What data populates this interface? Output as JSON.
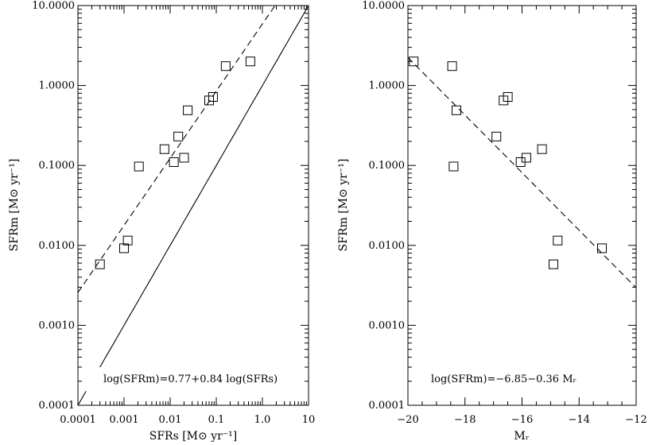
{
  "chart_data": [
    {
      "type": "scatter",
      "xscale": "log",
      "yscale": "log",
      "xlim": [
        0.0001,
        10
      ],
      "ylim": [
        0.0001,
        10
      ],
      "x_ticks": [
        "0.0001",
        "0.001",
        "0.01",
        "0.1",
        "1.0",
        "10"
      ],
      "y_ticks": [
        "0.0001",
        "0.0010",
        "0.0100",
        "0.1000",
        "1.0000",
        "10.0000"
      ],
      "xlabel": "SFRs [M⊙ yr⁻¹]",
      "ylabel": "SFRm [M⊙ yr⁻¹]",
      "annotation": "log(SFRm)=0.77+0.84  log(SFRs)",
      "points": [
        {
          "x": 0.0003,
          "y": 0.0058
        },
        {
          "x": 0.001,
          "y": 0.0092
        },
        {
          "x": 0.0012,
          "y": 0.0115
        },
        {
          "x": 0.0021,
          "y": 0.097
        },
        {
          "x": 0.0075,
          "y": 0.16
        },
        {
          "x": 0.012,
          "y": 0.11
        },
        {
          "x": 0.015,
          "y": 0.23
        },
        {
          "x": 0.02,
          "y": 0.125
        },
        {
          "x": 0.024,
          "y": 0.49
        },
        {
          "x": 0.07,
          "y": 0.65
        },
        {
          "x": 0.085,
          "y": 0.72
        },
        {
          "x": 0.16,
          "y": 1.75
        },
        {
          "x": 0.55,
          "y": 2.0
        }
      ],
      "lines": [
        {
          "style": "dashed",
          "kind": "fit",
          "intercept": 0.77,
          "slope": 0.84
        },
        {
          "style": "solid",
          "kind": "one-to-one",
          "x_start": 0.0003
        }
      ]
    },
    {
      "type": "scatter",
      "xscale": "linear",
      "yscale": "log",
      "xlim": [
        -20,
        -12
      ],
      "ylim": [
        0.0001,
        10
      ],
      "x_ticks": [
        "−20",
        "−18",
        "−16",
        "−14",
        "−12"
      ],
      "y_ticks": [
        "0.0001",
        "0.0010",
        "0.0100",
        "0.1000",
        "1.0000",
        "10.0000"
      ],
      "xlabel": "Mᵣ",
      "ylabel": "SFRm [M⊙ yr⁻¹]",
      "annotation": "log(SFRm)=−6.85−0.36 Mᵣ",
      "points": [
        {
          "x": -19.8,
          "y": 2.0
        },
        {
          "x": -18.45,
          "y": 1.75
        },
        {
          "x": -18.3,
          "y": 0.49
        },
        {
          "x": -18.4,
          "y": 0.097
        },
        {
          "x": -16.9,
          "y": 0.23
        },
        {
          "x": -16.65,
          "y": 0.65
        },
        {
          "x": -16.5,
          "y": 0.72
        },
        {
          "x": -16.05,
          "y": 0.11
        },
        {
          "x": -15.85,
          "y": 0.125
        },
        {
          "x": -15.3,
          "y": 0.16
        },
        {
          "x": -14.75,
          "y": 0.0115
        },
        {
          "x": -14.9,
          "y": 0.0058
        },
        {
          "x": -13.2,
          "y": 0.0092
        }
      ],
      "lines": [
        {
          "style": "dashed",
          "kind": "fit",
          "intercept": -6.85,
          "slope": -0.36
        }
      ]
    }
  ]
}
